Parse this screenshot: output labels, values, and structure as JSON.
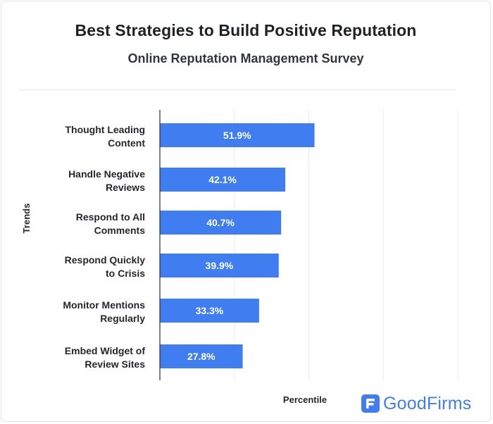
{
  "header": {
    "title": "Best Strategies to Build Positive Reputation",
    "subtitle": "Online Reputation Management Survey"
  },
  "branding": {
    "logo_text": "GoodFirms",
    "logo_color": "#3f7df0"
  },
  "chart_data": {
    "type": "bar",
    "orientation": "horizontal",
    "categories": [
      [
        "Thought Leading",
        "Content"
      ],
      [
        "Handle Negative",
        "Reviews"
      ],
      [
        "Respond to All",
        "Comments"
      ],
      [
        "Respond Quickly",
        "to Crisis"
      ],
      [
        "Monitor Mentions",
        "Regularly"
      ],
      [
        "Embed Widget of",
        "Review Sites"
      ]
    ],
    "values": [
      51.9,
      42.1,
      40.7,
      39.9,
      33.3,
      27.8
    ],
    "value_labels": [
      "51.9%",
      "42.1%",
      "40.7%",
      "39.9%",
      "33.3%",
      "27.8%"
    ],
    "xlabel": "Percentile",
    "ylabel": "Trends",
    "xlim": [
      0,
      100
    ],
    "gridlines": [
      0,
      25,
      50,
      75,
      100
    ],
    "grid": true,
    "bar_color": "#3f7df0",
    "grid_color": "#e6e9f0"
  }
}
